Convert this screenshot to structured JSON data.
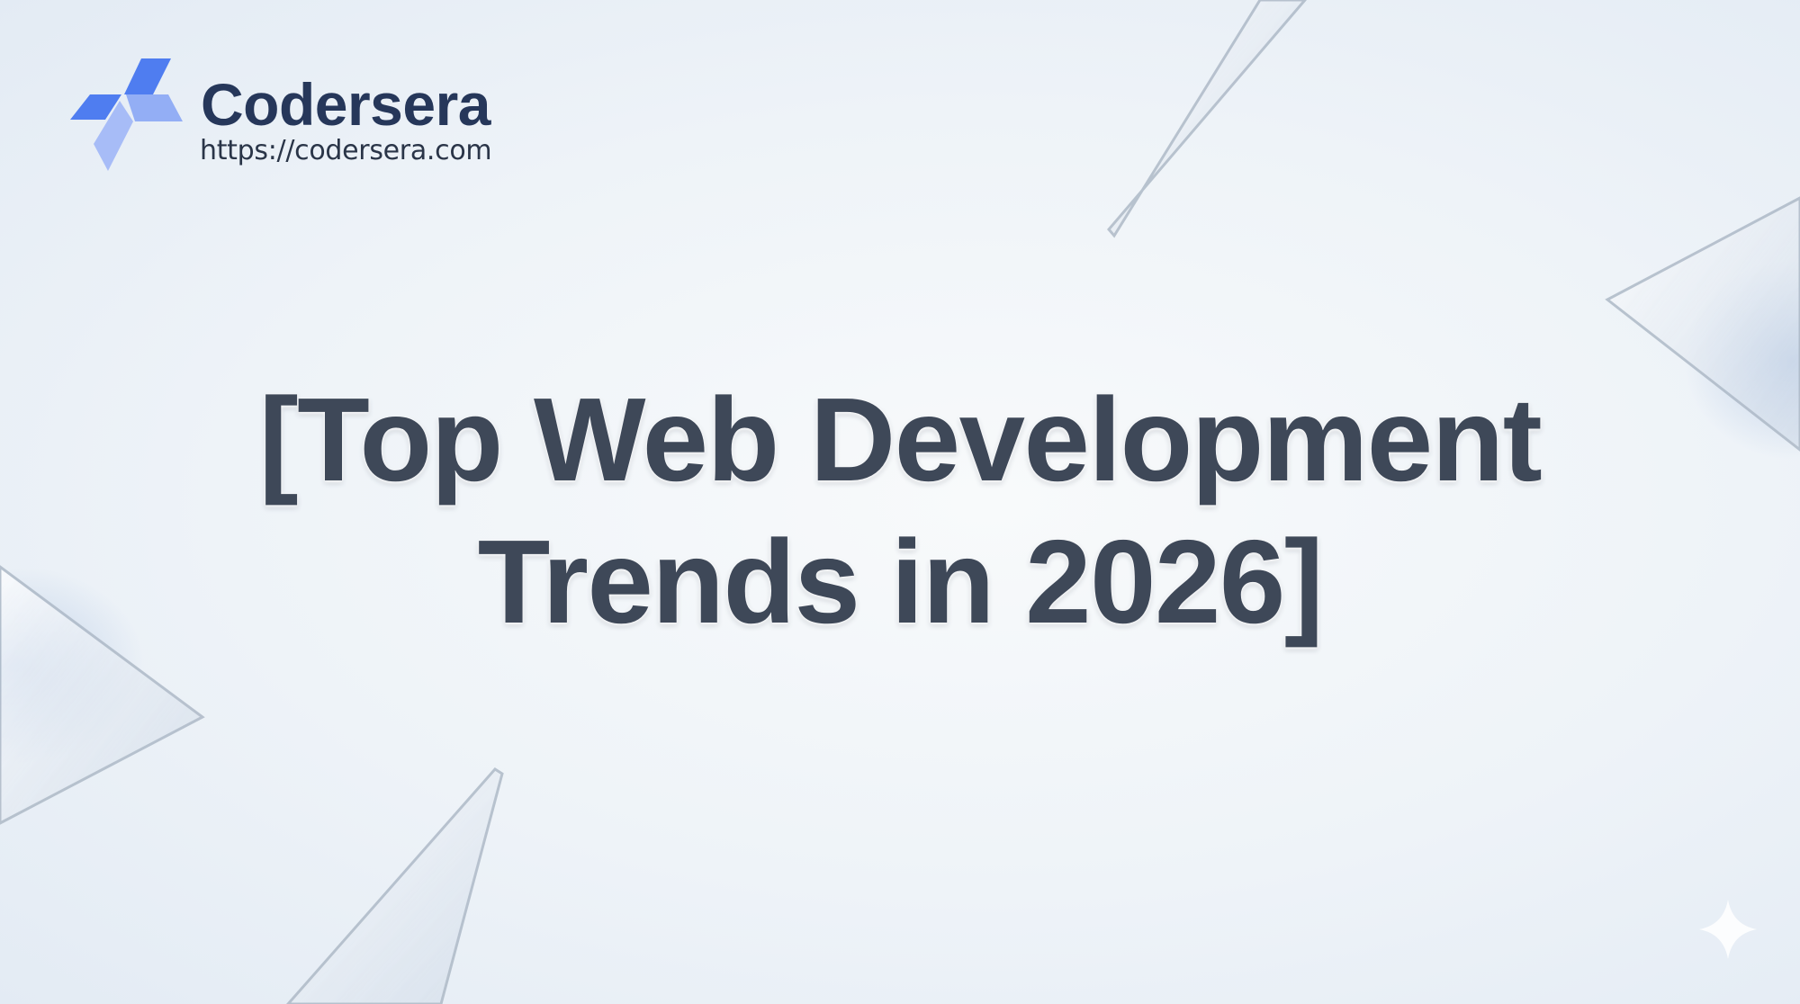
{
  "brand": {
    "name": "Codersera",
    "url": "https://codersera.com",
    "colors": {
      "primary": "#4f7df0",
      "light": "#9fb6f6",
      "text": "#26375a"
    }
  },
  "title": {
    "line1": "[Top Web Development",
    "line2": "Trends in 2026]",
    "color": "#3e4858"
  },
  "decor": {
    "icons": [
      "glass-shard",
      "sparkle-icon"
    ]
  }
}
